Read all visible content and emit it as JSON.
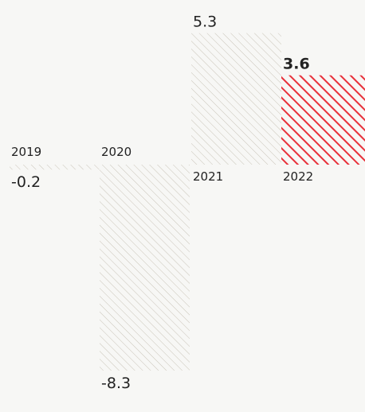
{
  "chart_data": {
    "type": "bar",
    "categories": [
      "2019",
      "2020",
      "2021",
      "2022"
    ],
    "values": [
      -0.2,
      -8.3,
      5.3,
      3.6
    ],
    "value_labels": [
      "-0.2",
      "-8.3",
      "5.3",
      "3.6"
    ],
    "highlight_index": 3,
    "colors": {
      "default_hatch": "#c9c4b8",
      "highlight_hatch": "#e8303a",
      "text": "#222222"
    },
    "grid": false,
    "axes_visible": false
  }
}
